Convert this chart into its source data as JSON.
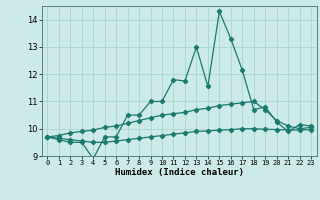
{
  "xlabel": "Humidex (Indice chaleur)",
  "x": [
    0,
    1,
    2,
    3,
    4,
    5,
    6,
    7,
    8,
    9,
    10,
    11,
    12,
    13,
    14,
    15,
    16,
    17,
    18,
    19,
    20,
    21,
    22,
    23
  ],
  "y_main": [
    9.7,
    9.6,
    9.5,
    9.5,
    8.9,
    9.7,
    9.7,
    10.5,
    10.5,
    11.0,
    11.0,
    11.8,
    11.75,
    13.0,
    11.55,
    14.3,
    13.3,
    12.15,
    10.7,
    10.8,
    10.25,
    9.9,
    10.15,
    10.1
  ],
  "y_upper": [
    9.7,
    9.75,
    9.85,
    9.9,
    9.95,
    10.05,
    10.1,
    10.2,
    10.3,
    10.4,
    10.5,
    10.55,
    10.6,
    10.7,
    10.75,
    10.85,
    10.9,
    10.95,
    11.0,
    10.7,
    10.3,
    10.1,
    10.0,
    10.05
  ],
  "y_lower": [
    9.7,
    9.65,
    9.6,
    9.55,
    9.5,
    9.5,
    9.55,
    9.6,
    9.65,
    9.7,
    9.75,
    9.8,
    9.85,
    9.9,
    9.92,
    9.95,
    9.97,
    10.0,
    10.0,
    9.98,
    9.97,
    9.95,
    9.95,
    9.97
  ],
  "line_color": "#1a7a6e",
  "bg_color": "#cceae8",
  "grid_color": "#aad4d0",
  "ylim": [
    9.0,
    14.5
  ],
  "yticks": [
    9,
    10,
    11,
    12,
    13,
    14
  ],
  "xtick_labels": [
    "0",
    "1",
    "2",
    "3",
    "4",
    "5",
    "6",
    "7",
    "8",
    "9",
    "10",
    "11",
    "12",
    "13",
    "14",
    "15",
    "16",
    "17",
    "18",
    "19",
    "20",
    "21",
    "22",
    "23"
  ]
}
